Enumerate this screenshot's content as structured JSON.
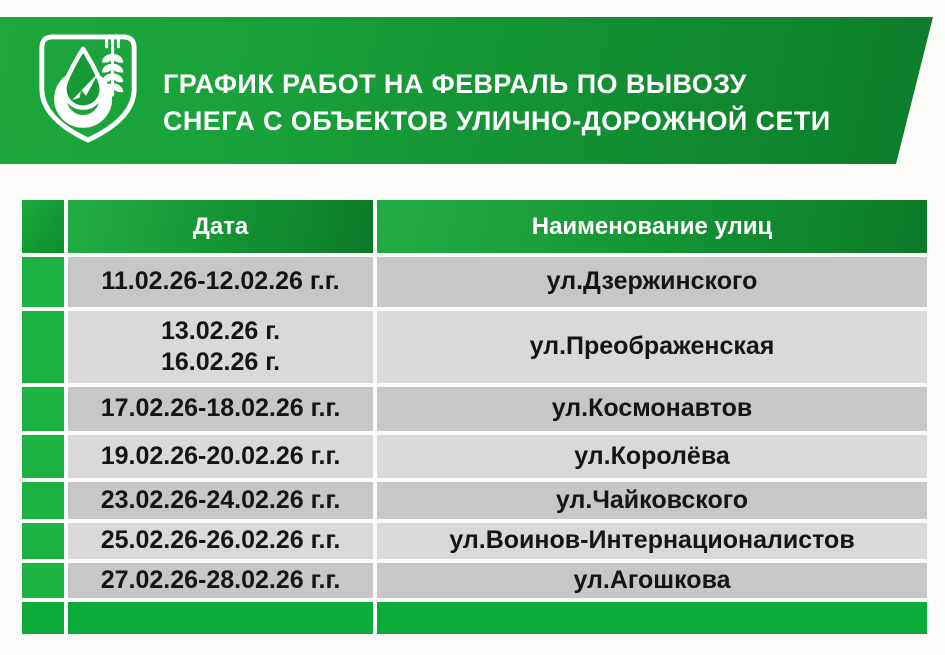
{
  "banner": {
    "title_line1": "ГРАФИК РАБОТ НА ФЕВРАЛЬ ПО ВЫВОЗУ",
    "title_line2": "СНЕГА С ОБЪЕКТОВ УЛИЧНО-ДОРОЖНОЙ СЕТИ",
    "logo": {
      "icon": "city-coat-of-arms",
      "elements": [
        "shield-outline",
        "water-drop",
        "arrow",
        "horseshoe",
        "wheat-ear"
      ]
    }
  },
  "table": {
    "columns": [
      {
        "key": "date",
        "label": "Дата"
      },
      {
        "key": "street",
        "label": "Наименование улиц"
      }
    ],
    "rows": [
      {
        "date": "11.02.26-12.02.26 г.г.",
        "street": "ул.Дзержинского"
      },
      {
        "date": "13.02.26 г.\n16.02.26 г.",
        "street": "ул.Преображенская"
      },
      {
        "date": "17.02.26-18.02.26 г.г.",
        "street": "ул.Космонавтов"
      },
      {
        "date": "19.02.26-20.02.26 г.г.",
        "street": "ул.Королёва"
      },
      {
        "date": "23.02.26-24.02.26 г.г.",
        "street": "ул.Чайковского"
      },
      {
        "date": "25.02.26-26.02.26 г.г.",
        "street": "ул.Воинов-Интернационалистов"
      },
      {
        "date": "27.02.26-28.02.26 г.г.",
        "street": "ул.Агошкова"
      }
    ],
    "footer_row": {
      "date": "",
      "street": ""
    }
  },
  "colors": {
    "banner_green_light": "#1ea73d",
    "banner_green_dark": "#0c7c2a",
    "header_green_light": "#23ac43",
    "header_green_dark": "#0c7a29",
    "stripe_green": "#1db343",
    "footer_green": "#0caa3a",
    "row_gray_dark": "#c7c7c6",
    "row_gray_light": "#d9d9d8",
    "text_black": "#151515",
    "text_white": "#ffffff"
  }
}
